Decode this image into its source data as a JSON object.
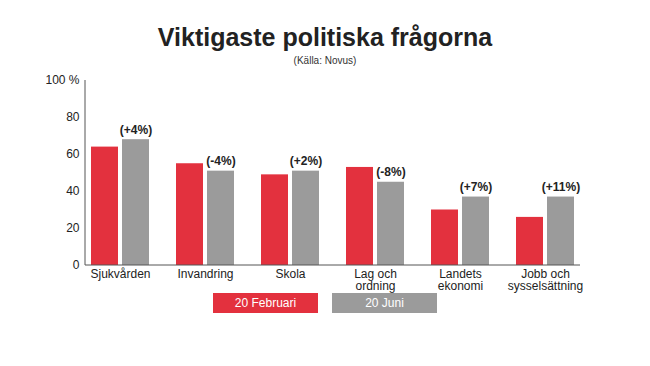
{
  "chart_data": {
    "type": "bar",
    "title": "Viktigaste politiska frågorna",
    "subtitle": "(Källa: Novus)",
    "categories": [
      "Sjukvården",
      "Invandring",
      "Skola",
      "Lag och\nordning",
      "Landets\nekonomi",
      "Jobb och\nsysselsättning"
    ],
    "series": [
      {
        "name": "20 Februari",
        "color": "#e3313e",
        "values": [
          64,
          55,
          49,
          53,
          30,
          26
        ]
      },
      {
        "name": "20 Juni",
        "color": "#9b9b9b",
        "values": [
          68,
          51,
          51,
          45,
          37,
          37
        ]
      }
    ],
    "annotations": [
      "(+4%)",
      "(-4%)",
      "(+2%)",
      "(-8%)",
      "(+7%)",
      "(+11%)"
    ],
    "ylim": [
      0,
      100
    ],
    "yticks": [
      0,
      20,
      40,
      60,
      80,
      {
        "value": 100,
        "label": "100 %"
      }
    ],
    "grid": false,
    "legend": "bottom",
    "data_labels": false
  }
}
